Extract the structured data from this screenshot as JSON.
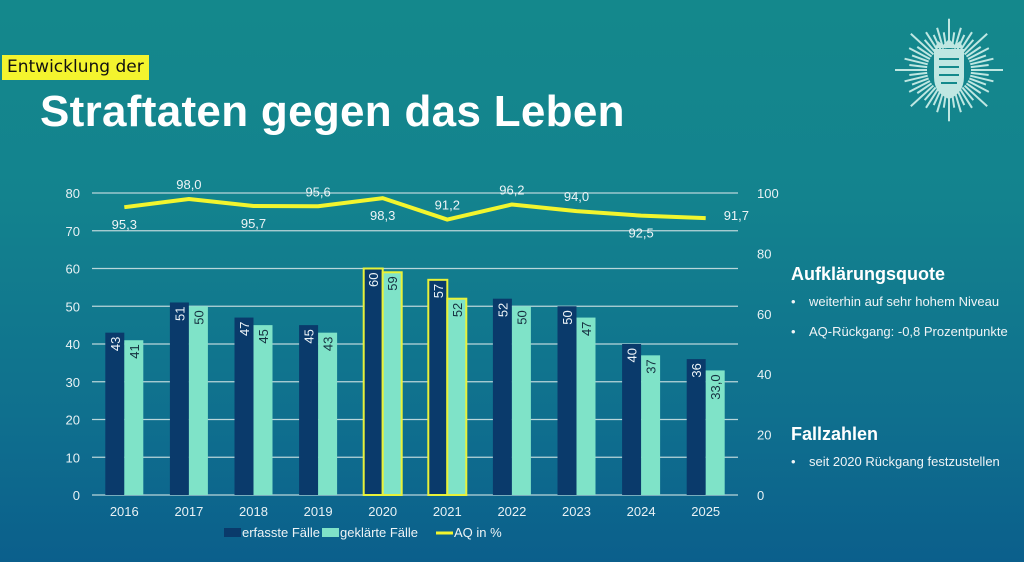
{
  "header": {
    "subtitle": "Entwicklung der",
    "title": "Straftaten gegen das Leben",
    "logo_icon": "police-star-icon"
  },
  "sidebar": {
    "sections": [
      {
        "heading": "Aufklärungsquote",
        "bullets": [
          "weiterhin auf sehr hohem Niveau",
          "AQ-Rückgang: -0,8 Prozentpunkte"
        ]
      },
      {
        "heading": "Fallzahlen",
        "bullets": [
          "seit 2020 Rückgang festzustellen"
        ]
      }
    ]
  },
  "colors": {
    "erfasst": "#0a3a6b",
    "geklaert": "#7fe3c8",
    "aq": "#f2f52e",
    "highlight": "#e8f23a"
  },
  "chart_data": {
    "type": "bar",
    "categories": [
      "2016",
      "2017",
      "2018",
      "2019",
      "2020",
      "2021",
      "2022",
      "2023",
      "2024",
      "2025"
    ],
    "series": [
      {
        "name": "erfasste Fälle",
        "axis": "left",
        "type": "bar",
        "values": [
          43,
          51,
          47,
          45,
          60,
          57,
          52,
          50,
          40,
          36
        ],
        "labels": [
          "43",
          "51",
          "47",
          "45",
          "60",
          "57",
          "52",
          "50",
          "40",
          "36"
        ]
      },
      {
        "name": "geklärte Fälle",
        "axis": "left",
        "type": "bar",
        "values": [
          41,
          50,
          45,
          43,
          59,
          52,
          50,
          47,
          37,
          33.0
        ],
        "labels": [
          "41",
          "50",
          "45",
          "43",
          "59",
          "52",
          "50",
          "47",
          "37",
          "33,0"
        ]
      },
      {
        "name": "AQ in %",
        "axis": "right",
        "type": "line",
        "values": [
          95.3,
          98.0,
          95.7,
          95.6,
          98.3,
          91.2,
          96.2,
          94.0,
          92.5,
          91.7
        ],
        "labels": [
          "95,3",
          "98,0",
          "95,7",
          "95,6",
          "98,3",
          "91,2",
          "96,2",
          "94,0",
          "92,5",
          "91,7"
        ]
      }
    ],
    "highlighted_categories": [
      "2020",
      "2021"
    ],
    "y_left": {
      "min": 0,
      "max": 80,
      "ticks": [
        "0",
        "10",
        "20",
        "30",
        "40",
        "50",
        "60",
        "70",
        "80"
      ]
    },
    "y_right": {
      "min": 0,
      "max": 100,
      "ticks": [
        "0",
        "20",
        "40",
        "60",
        "80",
        "100"
      ]
    },
    "grid": true,
    "legend": "bottom",
    "title": "Straftaten gegen das Leben"
  }
}
